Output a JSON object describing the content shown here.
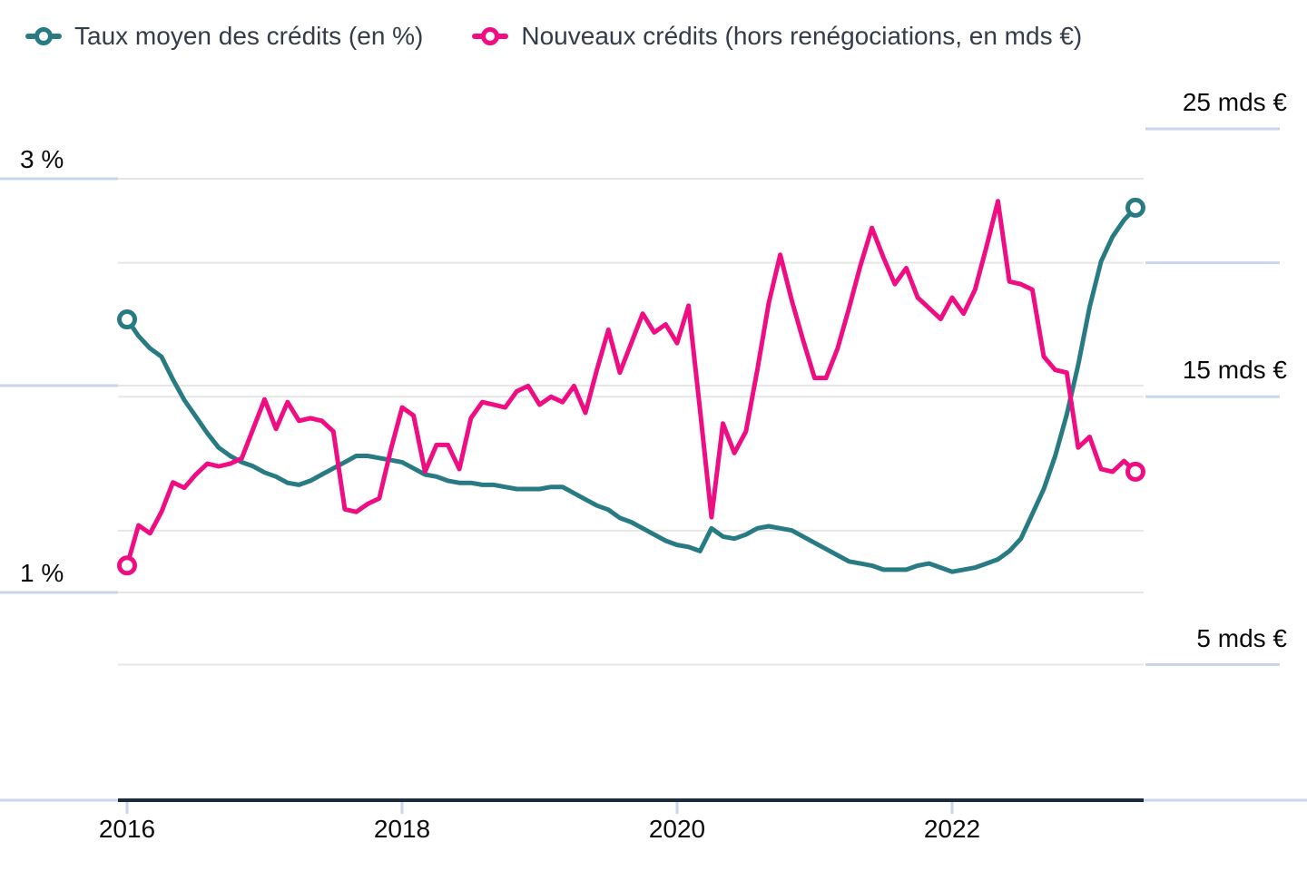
{
  "axis_labels": {
    "pct3": "3 %",
    "pct1": "1 %",
    "mds25": "25 mds €",
    "mds15": "15 mds €",
    "mds5": "5 mds €",
    "y2016": "2016",
    "y2018": "2018",
    "y2020": "2020",
    "y2022": "2022"
  },
  "colors": {
    "teal": "#287b82",
    "pink": "#ee0d82",
    "gridline": "#e6e6e6",
    "tick_blue": "#c9d6ea",
    "axis_dark": "#1c2b39",
    "legend_text": "#333c48"
  },
  "chart_data": {
    "type": "line",
    "title": "",
    "x": {
      "start": "2016-01",
      "end": "2023-05",
      "frequency": "monthly",
      "n_points": 89,
      "tick_labels": [
        "2016",
        "2018",
        "2020",
        "2022"
      ],
      "tick_month_index": [
        0,
        24,
        48,
        72
      ]
    },
    "left_axis": {
      "unit": "%",
      "range": [
        1,
        3
      ],
      "tick_values": [
        3,
        2,
        1
      ],
      "labeled_ticks": [
        "3 %",
        null,
        "1 %"
      ],
      "gridlines": [
        3,
        2,
        1
      ]
    },
    "right_axis": {
      "unit": "mds €",
      "range": [
        5,
        25
      ],
      "tick_values": [
        25,
        20,
        15,
        5
      ],
      "labeled_ticks": [
        "25 mds €",
        null,
        "15 mds €",
        "5 mds €"
      ],
      "gridlines": [
        20,
        15,
        10,
        5
      ]
    },
    "legend_position": "top-left",
    "grid": true,
    "series": [
      {
        "name": "Taux moyen des crédits (en %)",
        "axis": "left",
        "color": "#287b82",
        "values": [
          2.32,
          2.24,
          2.18,
          2.14,
          2.03,
          1.93,
          1.85,
          1.77,
          1.7,
          1.66,
          1.63,
          1.61,
          1.58,
          1.56,
          1.53,
          1.52,
          1.54,
          1.57,
          1.6,
          1.63,
          1.66,
          1.66,
          1.65,
          1.64,
          1.63,
          1.6,
          1.57,
          1.56,
          1.54,
          1.53,
          1.53,
          1.52,
          1.52,
          1.51,
          1.5,
          1.5,
          1.5,
          1.51,
          1.51,
          1.48,
          1.45,
          1.42,
          1.4,
          1.36,
          1.34,
          1.31,
          1.28,
          1.25,
          1.23,
          1.22,
          1.2,
          1.31,
          1.27,
          1.26,
          1.28,
          1.31,
          1.32,
          1.31,
          1.3,
          1.27,
          1.24,
          1.21,
          1.18,
          1.15,
          1.14,
          1.13,
          1.11,
          1.11,
          1.11,
          1.13,
          1.14,
          1.12,
          1.1,
          1.11,
          1.12,
          1.14,
          1.16,
          1.2,
          1.26,
          1.38,
          1.5,
          1.66,
          1.86,
          2.1,
          2.38,
          2.6,
          2.72,
          2.8,
          2.86
        ]
      },
      {
        "name": "Nouveaux crédits (hors renégociations, en mds €)",
        "axis": "right",
        "color": "#ee0d82",
        "values": [
          8.7,
          10.2,
          9.9,
          10.7,
          11.8,
          11.6,
          12.1,
          12.5,
          12.4,
          12.5,
          12.7,
          13.8,
          14.9,
          13.8,
          14.8,
          14.1,
          14.2,
          14.1,
          13.7,
          10.8,
          10.7,
          11.0,
          11.2,
          13.0,
          14.6,
          14.3,
          12.2,
          13.2,
          13.2,
          12.3,
          14.2,
          14.8,
          14.7,
          14.6,
          15.2,
          15.4,
          14.7,
          15.0,
          14.8,
          15.4,
          14.4,
          16.0,
          17.5,
          15.9,
          17.0,
          18.1,
          17.4,
          17.7,
          17.0,
          18.4,
          14.5,
          10.5,
          14.0,
          12.9,
          13.7,
          16.0,
          18.5,
          20.3,
          18.6,
          17.1,
          15.7,
          15.7,
          16.8,
          18.3,
          19.9,
          21.3,
          20.2,
          19.2,
          19.8,
          18.7,
          18.3,
          17.9,
          18.7,
          18.1,
          19.0,
          20.6,
          22.3,
          19.3,
          19.2,
          19.0,
          16.5,
          16.0,
          15.9,
          13.1,
          13.5,
          12.3,
          12.2,
          12.6,
          12.2
        ]
      }
    ]
  }
}
